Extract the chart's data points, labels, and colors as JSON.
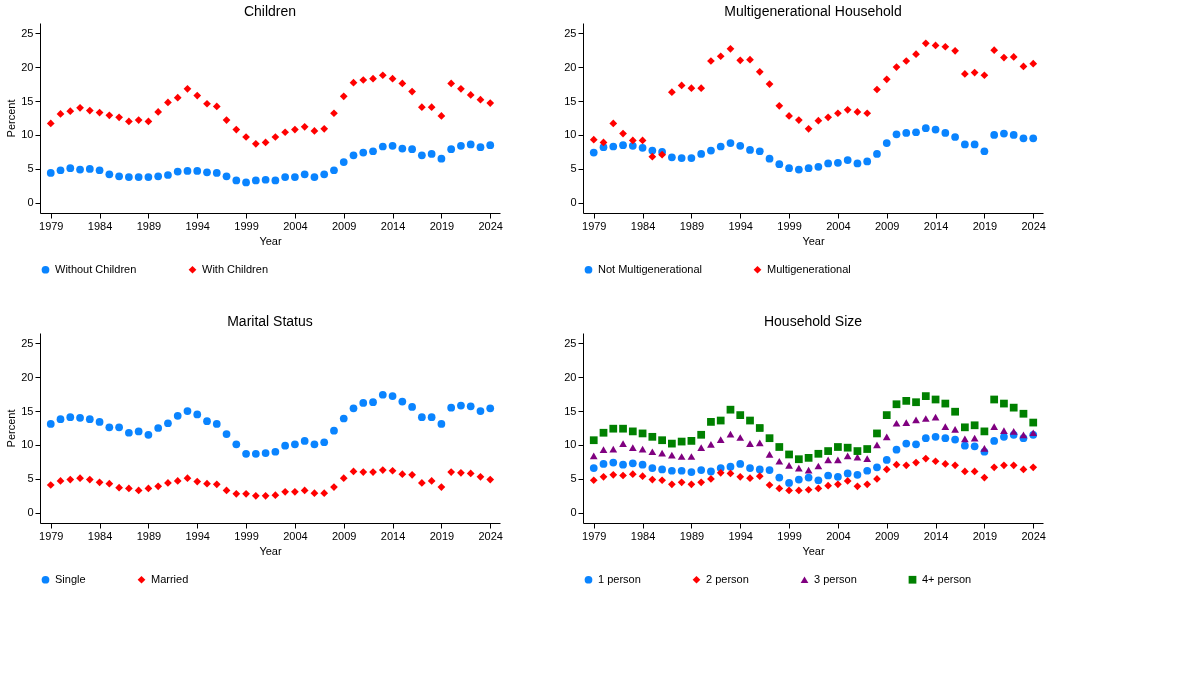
{
  "chart_data": [
    {
      "type": "scatter",
      "title": "Children",
      "xlabel": "Year",
      "ylabel": "Percent",
      "legend": "bottom",
      "x": [
        1979,
        1980,
        1981,
        1982,
        1983,
        1984,
        1985,
        1986,
        1987,
        1988,
        1989,
        1990,
        1991,
        1992,
        1993,
        1994,
        1995,
        1996,
        1997,
        1998,
        1999,
        2000,
        2001,
        2002,
        2003,
        2004,
        2005,
        2006,
        2007,
        2008,
        2009,
        2010,
        2011,
        2012,
        2013,
        2014,
        2015,
        2016,
        2017,
        2018,
        2019,
        2020,
        2021,
        2022,
        2023,
        2024
      ],
      "xlim": [
        1977.9,
        2025
      ],
      "xticks": [
        1979,
        1984,
        1989,
        1994,
        1999,
        2004,
        2009,
        2014,
        2019,
        2024
      ],
      "ylim": [
        -1.5,
        26.5
      ],
      "yticks": [
        0,
        5,
        10,
        15,
        20,
        25
      ],
      "series": [
        {
          "name": "Without Children",
          "color": "#0a84ff",
          "marker": "circle",
          "values": [
            4.4,
            4.8,
            5.1,
            4.9,
            5.0,
            4.8,
            4.2,
            3.9,
            3.8,
            3.8,
            3.8,
            3.9,
            4.1,
            4.6,
            4.7,
            4.7,
            4.5,
            4.4,
            3.9,
            3.3,
            3.0,
            3.3,
            3.4,
            3.3,
            3.8,
            3.8,
            4.2,
            3.8,
            4.2,
            4.8,
            6.0,
            7.0,
            7.4,
            7.6,
            8.3,
            8.4,
            8.0,
            7.9,
            7.0,
            7.2,
            6.5,
            7.9,
            8.4,
            8.6,
            8.2,
            8.5
          ]
        },
        {
          "name": "With Children",
          "color": "#ff0000",
          "marker": "diamond",
          "values": [
            11.7,
            13.1,
            13.5,
            14.0,
            13.6,
            13.3,
            12.9,
            12.6,
            12.0,
            12.2,
            12.0,
            13.4,
            14.8,
            15.5,
            16.8,
            15.8,
            14.6,
            14.2,
            12.2,
            10.8,
            9.7,
            8.7,
            8.9,
            9.7,
            10.4,
            10.8,
            11.2,
            10.6,
            10.9,
            13.2,
            15.7,
            17.7,
            18.1,
            18.3,
            18.8,
            18.3,
            17.6,
            16.4,
            14.1,
            14.1,
            12.8,
            17.6,
            16.8,
            15.9,
            15.2,
            14.7
          ]
        }
      ]
    },
    {
      "type": "scatter",
      "title": "Multigenerational Household",
      "xlabel": "Year",
      "ylabel": null,
      "legend": "bottom",
      "x": [
        1979,
        1980,
        1981,
        1982,
        1983,
        1984,
        1985,
        1986,
        1987,
        1988,
        1989,
        1990,
        1991,
        1992,
        1993,
        1994,
        1995,
        1996,
        1997,
        1998,
        1999,
        2000,
        2001,
        2002,
        2003,
        2004,
        2005,
        2006,
        2007,
        2008,
        2009,
        2010,
        2011,
        2012,
        2013,
        2014,
        2015,
        2016,
        2017,
        2018,
        2019,
        2020,
        2021,
        2022,
        2023,
        2024
      ],
      "xlim": [
        1977.9,
        2025
      ],
      "xticks": [
        1979,
        1984,
        1989,
        1994,
        1999,
        2004,
        2009,
        2014,
        2019,
        2024
      ],
      "ylim": [
        -1.5,
        26.5
      ],
      "yticks": [
        0,
        5,
        10,
        15,
        20,
        25
      ],
      "series": [
        {
          "name": "Not Multigenerational",
          "color": "#0a84ff",
          "marker": "circle",
          "values": [
            7.4,
            8.2,
            8.3,
            8.5,
            8.4,
            8.1,
            7.7,
            7.5,
            6.7,
            6.6,
            6.6,
            7.2,
            7.7,
            8.3,
            8.8,
            8.4,
            7.8,
            7.6,
            6.5,
            5.7,
            5.1,
            4.9,
            5.1,
            5.3,
            5.8,
            5.9,
            6.3,
            5.8,
            6.1,
            7.2,
            8.8,
            10.1,
            10.3,
            10.4,
            11.0,
            10.8,
            10.3,
            9.7,
            8.6,
            8.6,
            7.6,
            10.0,
            10.2,
            10.0,
            9.5,
            9.5
          ]
        },
        {
          "name": "Multigenerational",
          "color": "#ff0000",
          "marker": "diamond",
          "values": [
            9.3,
            8.9,
            11.7,
            10.2,
            9.2,
            9.2,
            6.8,
            7.1,
            16.3,
            17.3,
            16.9,
            16.9,
            20.9,
            21.6,
            22.7,
            21.0,
            21.1,
            19.3,
            17.5,
            14.3,
            12.8,
            12.2,
            10.9,
            12.1,
            12.6,
            13.2,
            13.7,
            13.4,
            13.2,
            16.7,
            18.2,
            20.0,
            20.9,
            21.9,
            23.5,
            23.2,
            23.0,
            22.4,
            19.0,
            19.2,
            18.8,
            22.5,
            21.4,
            21.5,
            20.1,
            20.5
          ]
        }
      ]
    },
    {
      "type": "scatter",
      "title": "Marital Status",
      "xlabel": "Year",
      "ylabel": "Percent",
      "legend": "bottom",
      "x": [
        1979,
        1980,
        1981,
        1982,
        1983,
        1984,
        1985,
        1986,
        1987,
        1988,
        1989,
        1990,
        1991,
        1992,
        1993,
        1994,
        1995,
        1996,
        1997,
        1998,
        1999,
        2000,
        2001,
        2002,
        2003,
        2004,
        2005,
        2006,
        2007,
        2008,
        2009,
        2010,
        2011,
        2012,
        2013,
        2014,
        2015,
        2016,
        2017,
        2018,
        2019,
        2020,
        2021,
        2022,
        2023,
        2024
      ],
      "xlim": [
        1977.9,
        2025
      ],
      "xticks": [
        1979,
        1984,
        1989,
        1994,
        1999,
        2004,
        2009,
        2014,
        2019,
        2024
      ],
      "ylim": [
        -1.5,
        26.5
      ],
      "yticks": [
        0,
        5,
        10,
        15,
        20,
        25
      ],
      "series": [
        {
          "name": "Single",
          "color": "#0a84ff",
          "marker": "circle",
          "values": [
            13.1,
            13.8,
            14.1,
            14.0,
            13.8,
            13.4,
            12.6,
            12.6,
            11.8,
            12.0,
            11.5,
            12.5,
            13.2,
            14.3,
            15.0,
            14.5,
            13.5,
            13.1,
            11.6,
            10.1,
            8.7,
            8.7,
            8.8,
            9.0,
            9.9,
            10.1,
            10.6,
            10.1,
            10.4,
            12.1,
            13.9,
            15.4,
            16.2,
            16.3,
            17.4,
            17.2,
            16.4,
            15.6,
            14.1,
            14.1,
            13.1,
            15.5,
            15.8,
            15.7,
            15.0,
            15.4
          ]
        },
        {
          "name": "Married",
          "color": "#ff0000",
          "marker": "diamond",
          "values": [
            4.1,
            4.7,
            4.9,
            5.1,
            4.9,
            4.5,
            4.3,
            3.7,
            3.6,
            3.3,
            3.6,
            3.9,
            4.4,
            4.7,
            5.1,
            4.6,
            4.3,
            4.2,
            3.3,
            2.8,
            2.8,
            2.5,
            2.5,
            2.6,
            3.1,
            3.1,
            3.3,
            2.9,
            2.9,
            3.8,
            5.1,
            6.1,
            6.0,
            6.0,
            6.3,
            6.2,
            5.7,
            5.6,
            4.4,
            4.7,
            3.8,
            6.0,
            5.9,
            5.8,
            5.3,
            4.9
          ]
        }
      ]
    },
    {
      "type": "scatter",
      "title": "Household Size",
      "xlabel": "Year",
      "ylabel": null,
      "legend": "bottom",
      "x": [
        1979,
        1980,
        1981,
        1982,
        1983,
        1984,
        1985,
        1986,
        1987,
        1988,
        1989,
        1990,
        1991,
        1992,
        1993,
        1994,
        1995,
        1996,
        1997,
        1998,
        1999,
        2000,
        2001,
        2002,
        2003,
        2004,
        2005,
        2006,
        2007,
        2008,
        2009,
        2010,
        2011,
        2012,
        2013,
        2014,
        2015,
        2016,
        2017,
        2018,
        2019,
        2020,
        2021,
        2022,
        2023,
        2024
      ],
      "xlim": [
        1977.9,
        2025
      ],
      "xticks": [
        1979,
        1984,
        1989,
        1994,
        1999,
        2004,
        2009,
        2014,
        2019,
        2024
      ],
      "ylim": [
        -1.5,
        26.5
      ],
      "yticks": [
        0,
        5,
        10,
        15,
        20,
        25
      ],
      "series": [
        {
          "name": "1 person",
          "color": "#0a84ff",
          "marker": "circle",
          "values": [
            6.6,
            7.2,
            7.4,
            7.1,
            7.3,
            7.1,
            6.6,
            6.4,
            6.2,
            6.2,
            6.0,
            6.3,
            6.1,
            6.6,
            6.8,
            7.2,
            6.6,
            6.4,
            6.3,
            5.2,
            4.4,
            4.9,
            5.2,
            4.8,
            5.5,
            5.3,
            5.8,
            5.6,
            6.2,
            6.7,
            7.8,
            9.3,
            10.2,
            10.1,
            11.0,
            11.2,
            11.0,
            10.8,
            9.9,
            9.8,
            9.0,
            10.6,
            11.2,
            11.5,
            11.0,
            11.5
          ]
        },
        {
          "name": "2 person",
          "color": "#ff0000",
          "marker": "diamond",
          "values": [
            4.8,
            5.3,
            5.6,
            5.5,
            5.7,
            5.4,
            4.9,
            4.8,
            4.2,
            4.5,
            4.2,
            4.5,
            5.0,
            5.9,
            5.8,
            5.3,
            5.1,
            5.4,
            4.1,
            3.6,
            3.3,
            3.3,
            3.4,
            3.6,
            4.0,
            4.2,
            4.7,
            3.9,
            4.2,
            5.0,
            6.4,
            7.1,
            7.0,
            7.4,
            8.0,
            7.6,
            7.2,
            7.0,
            6.1,
            6.1,
            5.2,
            6.7,
            7.0,
            7.0,
            6.4,
            6.7
          ]
        },
        {
          "name": "3 person",
          "color": "#800080",
          "marker": "triangle",
          "values": [
            8.4,
            9.3,
            9.4,
            10.2,
            9.6,
            9.4,
            9.0,
            8.8,
            8.5,
            8.3,
            8.3,
            9.6,
            10.1,
            10.8,
            11.6,
            11.1,
            10.2,
            10.3,
            8.6,
            7.6,
            7.0,
            6.6,
            6.3,
            6.9,
            7.8,
            7.8,
            8.4,
            8.2,
            8.0,
            10.0,
            11.2,
            13.2,
            13.3,
            13.7,
            13.9,
            14.1,
            12.7,
            12.3,
            10.9,
            11.0,
            9.5,
            12.7,
            12.1,
            12.0,
            11.5,
            11.8
          ]
        },
        {
          "name": "4+ person",
          "color": "#008000",
          "marker": "square",
          "values": [
            10.7,
            11.8,
            12.4,
            12.4,
            12.0,
            11.7,
            11.2,
            10.7,
            10.2,
            10.5,
            10.6,
            11.5,
            13.4,
            13.6,
            15.2,
            14.4,
            13.6,
            12.5,
            11.0,
            9.7,
            8.6,
            7.9,
            8.1,
            8.7,
            9.1,
            9.7,
            9.6,
            9.1,
            9.4,
            11.7,
            14.4,
            16.0,
            16.5,
            16.3,
            17.2,
            16.7,
            16.1,
            14.9,
            12.6,
            12.9,
            12.0,
            16.7,
            16.1,
            15.5,
            14.6,
            13.3
          ]
        }
      ]
    }
  ]
}
